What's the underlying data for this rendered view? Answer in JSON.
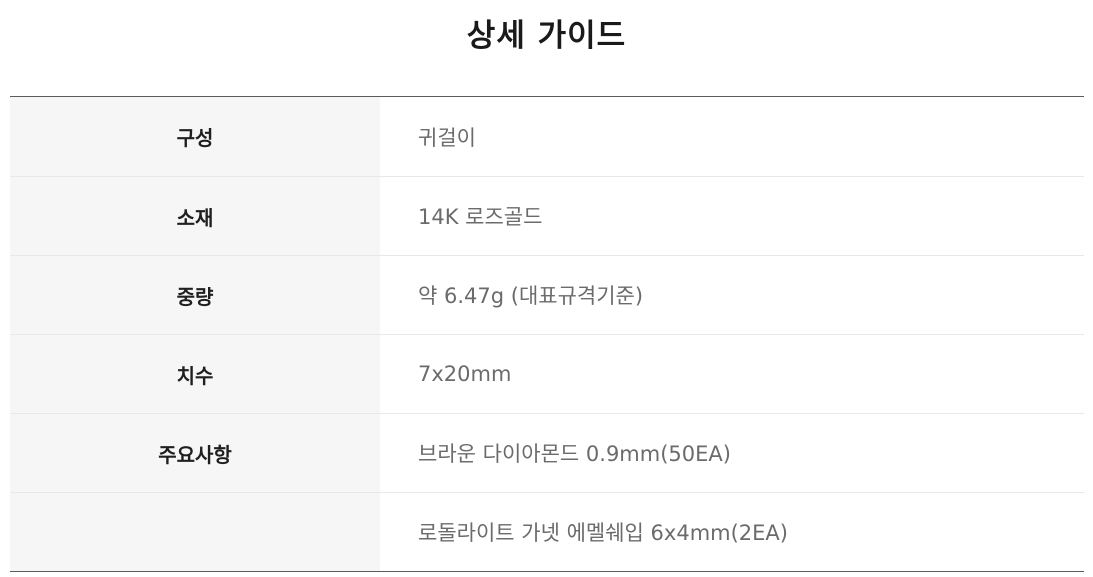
{
  "guide": {
    "title": "상세 가이드",
    "rows": [
      {
        "label": "구성",
        "value": "귀걸이"
      },
      {
        "label": "소재",
        "value": "14K 로즈골드"
      },
      {
        "label": "중량",
        "value": "약 6.47g (대표규격기준)"
      },
      {
        "label": "치수",
        "value": "7x20mm"
      },
      {
        "label": "주요사항",
        "value": "브라운 다이아몬드 0.9mm(50EA)"
      },
      {
        "label": "",
        "value": "로돌라이트 가넷 에멜쉐입 6x4mm(2EA)"
      }
    ]
  }
}
